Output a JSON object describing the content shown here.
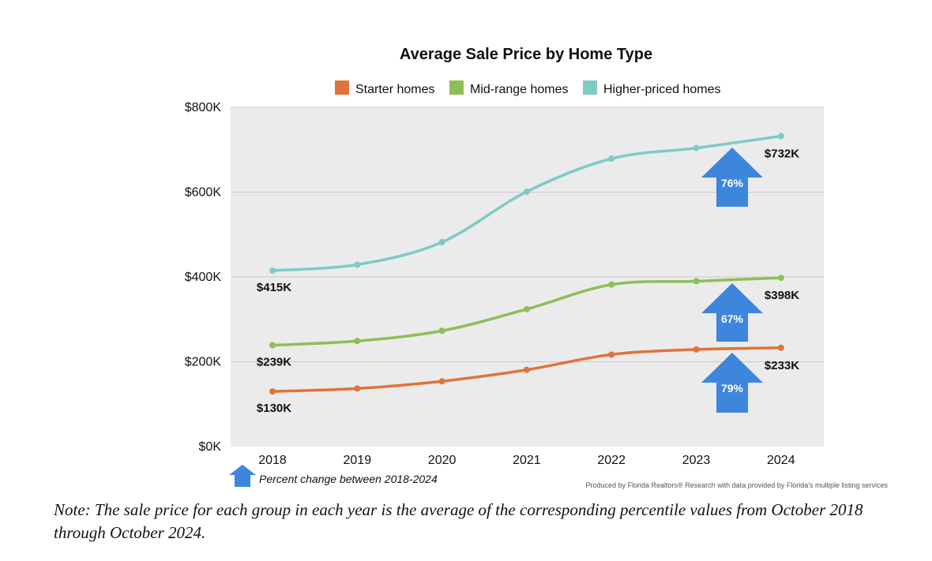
{
  "chart_data": {
    "type": "line",
    "title": "Average Sale Price by Home Type",
    "categories": [
      "2018",
      "2019",
      "2020",
      "2021",
      "2022",
      "2023",
      "2024"
    ],
    "ylim": [
      0,
      800000
    ],
    "yticks": [
      0,
      200000,
      400000,
      600000,
      800000
    ],
    "ytick_labels": [
      "$0K",
      "$200K",
      "$400K",
      "$600K",
      "$800K"
    ],
    "grid": true,
    "legend_position": "top-center",
    "series": [
      {
        "name": "Starter homes",
        "color": "#e0733a",
        "values": [
          130000,
          137000,
          154000,
          181000,
          217000,
          229000,
          233000
        ],
        "start_label": "$130K",
        "end_label": "$233K",
        "pct_change": "79%"
      },
      {
        "name": "Mid-range homes",
        "color": "#8cbf58",
        "values": [
          239000,
          249000,
          273000,
          324000,
          382000,
          390000,
          398000
        ],
        "start_label": "$239K",
        "end_label": "$398K",
        "pct_change": "67%"
      },
      {
        "name": "Higher-priced homes",
        "color": "#7ecbc3",
        "values": [
          415000,
          429000,
          482000,
          601000,
          679000,
          704000,
          732000
        ],
        "start_label": "$415K",
        "end_label": "$732K",
        "pct_change": "76%"
      }
    ],
    "arrow_color": "#3d86db",
    "arrow_legend": "Percent change between 2018-2024",
    "credit": "Produced by Florida Realtors® Research with data provided by Florida's multiple listing services"
  },
  "note": "Note: The sale price for each group in each year is the average of the corresponding percentile values from October 2018 through October 2024."
}
